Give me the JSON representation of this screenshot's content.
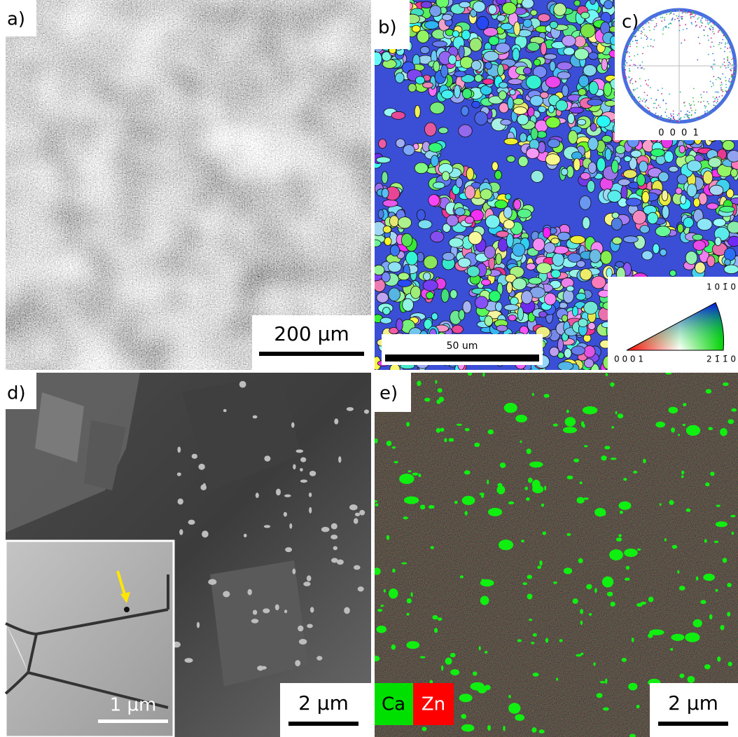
{
  "panels": [
    {
      "label": "a)",
      "scale_bar": "200 µm"
    },
    {
      "label": "b)",
      "scale_bar": "50 um"
    },
    {
      "label": "c)",
      "pole_figure_label": "0 0 0 1"
    },
    {
      "label": "d)",
      "scale_bar": "2 µm",
      "inset_scale_bar": "1 µm"
    },
    {
      "label": "e)",
      "scale_bar": "2 µm",
      "legend": [
        "Ca",
        "Zn"
      ]
    }
  ],
  "ipf_key": {
    "top": "1 0 1̄ 0",
    "left": "0 0 0 1",
    "right": "2 1̄ 1̄ 0"
  }
}
